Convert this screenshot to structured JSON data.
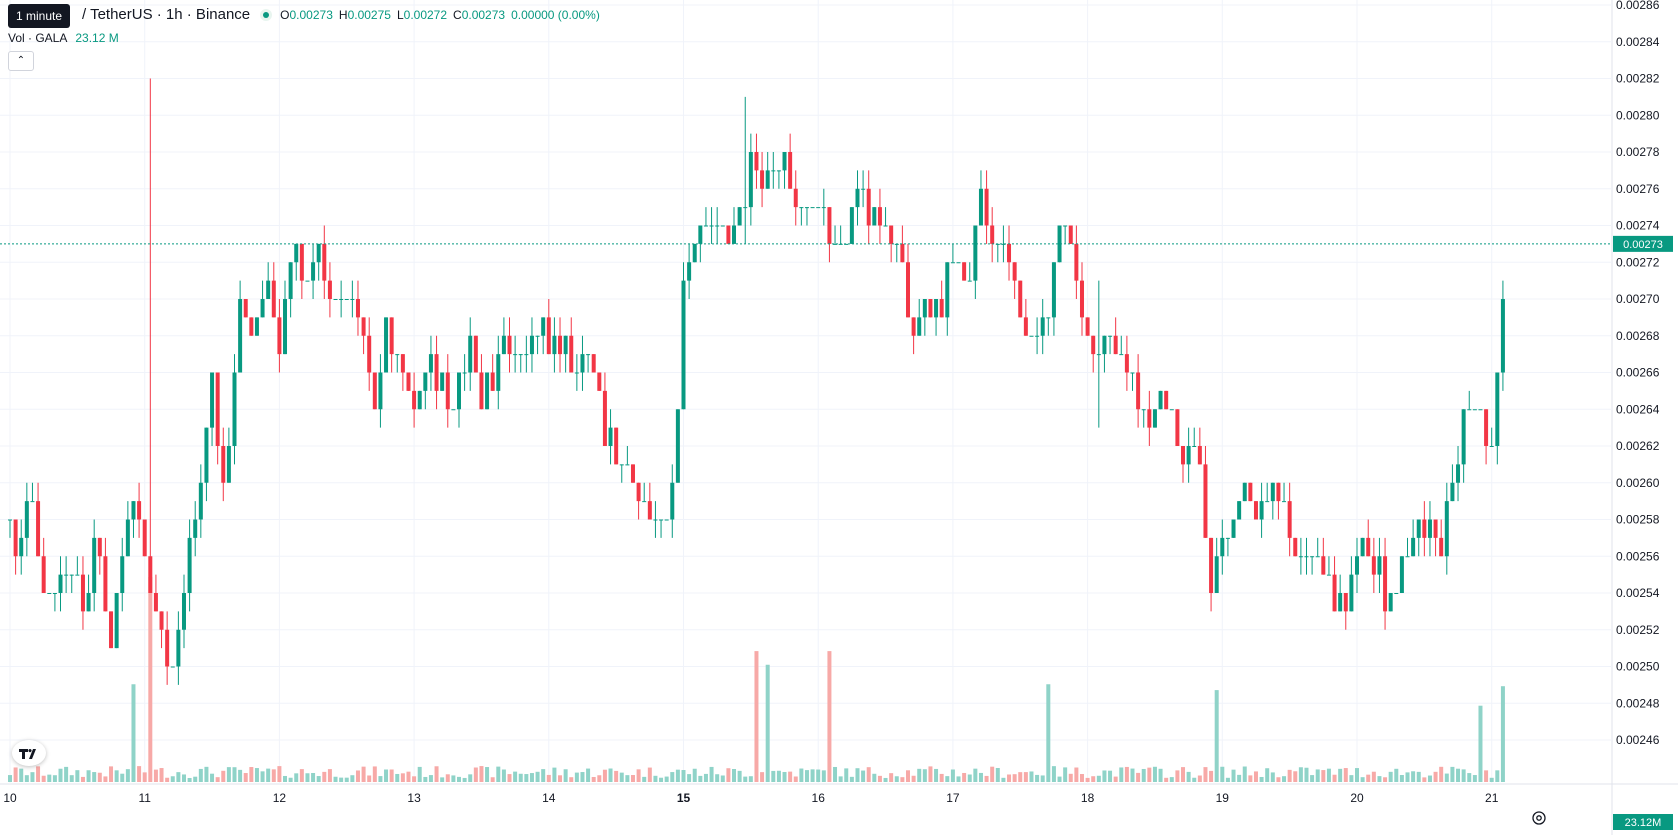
{
  "legend": {
    "symbol": "/ TetherUS · 1h · Binance",
    "open_label": "O",
    "open": "0.00273",
    "high_label": "H",
    "high": "0.00275",
    "low_label": "L",
    "low": "0.00272",
    "close_label": "C",
    "close": "0.00273",
    "change": "0.00000 (0.00%)",
    "tooltip": "1 minute"
  },
  "volume_legend": {
    "label": "Vol · GALA",
    "value": "23.12 M"
  },
  "price_axis": {
    "ticks": [
      "0.00286",
      "0.00284",
      "0.00282",
      "0.00280",
      "0.00278",
      "0.00276",
      "0.00274",
      "0.00272",
      "0.00270",
      "0.00268",
      "0.00266",
      "0.00264",
      "0.00262",
      "0.00260",
      "0.00258",
      "0.00256",
      "0.00254",
      "0.00252",
      "0.00250",
      "0.00248",
      "0.00246"
    ],
    "current_price": "0.00273",
    "volume_badge": "23.12M"
  },
  "time_axis": {
    "ticks": [
      "10",
      "11",
      "12",
      "13",
      "14",
      "15",
      "16",
      "17",
      "18",
      "19",
      "20",
      "21"
    ]
  },
  "colors": {
    "up": "#089981",
    "down": "#f23645",
    "up_volume": "#8fd3c8",
    "down_volume": "#f7a9a7",
    "grid": "#f0f3fa"
  },
  "chart_data": {
    "type": "candlestick",
    "interval": "1h",
    "x_range": [
      10,
      21
    ],
    "ylim": [
      0.00244,
      0.00286
    ],
    "ticks_major_bold": "15",
    "close_path": [
      [
        10.0,
        0.00258
      ],
      [
        10.05,
        0.00256
      ],
      [
        10.15,
        0.00259
      ],
      [
        10.25,
        0.00255
      ],
      [
        10.35,
        0.00254
      ],
      [
        10.45,
        0.00256
      ],
      [
        10.55,
        0.00254
      ],
      [
        10.65,
        0.00257
      ],
      [
        10.75,
        0.00251
      ],
      [
        10.8,
        0.00254
      ],
      [
        10.9,
        0.0026
      ],
      [
        11.0,
        0.00256
      ],
      [
        11.1,
        0.00253
      ],
      [
        11.2,
        0.00249
      ],
      [
        11.3,
        0.00255
      ],
      [
        11.4,
        0.00259
      ],
      [
        11.5,
        0.00266
      ],
      [
        11.6,
        0.00259
      ],
      [
        11.7,
        0.0027
      ],
      [
        11.8,
        0.00268
      ],
      [
        11.9,
        0.00271
      ],
      [
        12.0,
        0.00268
      ],
      [
        12.1,
        0.00273
      ],
      [
        12.2,
        0.00271
      ],
      [
        12.3,
        0.00272
      ],
      [
        12.4,
        0.0027
      ],
      [
        12.5,
        0.00271
      ],
      [
        12.6,
        0.00268
      ],
      [
        12.7,
        0.00264
      ],
      [
        12.8,
        0.00268
      ],
      [
        12.9,
        0.00266
      ],
      [
        13.0,
        0.00264
      ],
      [
        13.1,
        0.00267
      ],
      [
        13.2,
        0.00265
      ],
      [
        13.3,
        0.00264
      ],
      [
        13.4,
        0.00268
      ],
      [
        13.5,
        0.00265
      ],
      [
        13.6,
        0.00266
      ],
      [
        13.7,
        0.00268
      ],
      [
        13.8,
        0.00267
      ],
      [
        13.9,
        0.00269
      ],
      [
        14.0,
        0.00267
      ],
      [
        14.1,
        0.00268
      ],
      [
        14.2,
        0.00266
      ],
      [
        14.3,
        0.00267
      ],
      [
        14.4,
        0.00263
      ],
      [
        14.5,
        0.00262
      ],
      [
        14.6,
        0.00261
      ],
      [
        14.7,
        0.00259
      ],
      [
        14.8,
        0.00258
      ],
      [
        14.9,
        0.00259
      ],
      [
        15.0,
        0.0027
      ],
      [
        15.1,
        0.00273
      ],
      [
        15.2,
        0.00274
      ],
      [
        15.3,
        0.00273
      ],
      [
        15.4,
        0.00274
      ],
      [
        15.5,
        0.00278
      ],
      [
        15.6,
        0.00277
      ],
      [
        15.7,
        0.00278
      ],
      [
        15.8,
        0.00276
      ],
      [
        15.9,
        0.00274
      ],
      [
        16.0,
        0.00275
      ],
      [
        16.1,
        0.00272
      ],
      [
        16.2,
        0.00274
      ],
      [
        16.3,
        0.00276
      ],
      [
        16.4,
        0.00275
      ],
      [
        16.5,
        0.00274
      ],
      [
        16.6,
        0.00272
      ],
      [
        16.7,
        0.00268
      ],
      [
        16.8,
        0.0027
      ],
      [
        16.9,
        0.00269
      ],
      [
        17.0,
        0.00273
      ],
      [
        17.1,
        0.0027
      ],
      [
        17.2,
        0.00275
      ],
      [
        17.3,
        0.00273
      ],
      [
        17.4,
        0.00272
      ],
      [
        17.5,
        0.00269
      ],
      [
        17.6,
        0.00268
      ],
      [
        17.7,
        0.00269
      ],
      [
        17.8,
        0.00275
      ],
      [
        17.9,
        0.00272
      ],
      [
        18.0,
        0.00268
      ],
      [
        18.1,
        0.00267
      ],
      [
        18.2,
        0.00268
      ],
      [
        18.3,
        0.00266
      ],
      [
        18.4,
        0.00263
      ],
      [
        18.5,
        0.00264
      ],
      [
        18.6,
        0.00265
      ],
      [
        18.7,
        0.00262
      ],
      [
        18.8,
        0.00263
      ],
      [
        18.9,
        0.00254
      ],
      [
        19.0,
        0.00256
      ],
      [
        19.1,
        0.00259
      ],
      [
        19.2,
        0.0026
      ],
      [
        19.3,
        0.00258
      ],
      [
        19.4,
        0.0026
      ],
      [
        19.5,
        0.00257
      ],
      [
        19.6,
        0.00255
      ],
      [
        19.7,
        0.00256
      ],
      [
        19.8,
        0.00254
      ],
      [
        19.9,
        0.00253
      ],
      [
        20.0,
        0.00256
      ],
      [
        20.1,
        0.00257
      ],
      [
        20.2,
        0.00254
      ],
      [
        20.3,
        0.00255
      ],
      [
        20.4,
        0.00256
      ],
      [
        20.5,
        0.00258
      ],
      [
        20.6,
        0.00256
      ],
      [
        20.7,
        0.0026
      ],
      [
        20.8,
        0.00263
      ],
      [
        20.9,
        0.00264
      ],
      [
        21.0,
        0.00262
      ],
      [
        21.05,
        0.00266
      ],
      [
        21.1,
        0.00273
      ]
    ],
    "spikes": [
      {
        "x": 11.05,
        "high": 0.00282,
        "low": 0.00255
      },
      {
        "x": 15.45,
        "high": 0.00281,
        "low": 0.00273
      },
      {
        "x": 18.1,
        "high": 0.00271,
        "low": 0.00263
      }
    ],
    "volume_spikes": [
      {
        "x": 11.05,
        "value": 1.0,
        "up": true
      },
      {
        "x": 10.9,
        "value": 0.45,
        "up": false
      },
      {
        "x": 15.55,
        "value": 0.62,
        "up": true
      },
      {
        "x": 15.62,
        "value": 0.55,
        "up": true
      },
      {
        "x": 16.1,
        "value": 0.62,
        "up": false
      },
      {
        "x": 17.7,
        "value": 0.45,
        "up": false
      },
      {
        "x": 18.95,
        "value": 0.42,
        "up": false
      },
      {
        "x": 20.9,
        "value": 0.34,
        "up": true
      },
      {
        "x": 21.1,
        "value": 0.44,
        "up": true
      }
    ]
  }
}
